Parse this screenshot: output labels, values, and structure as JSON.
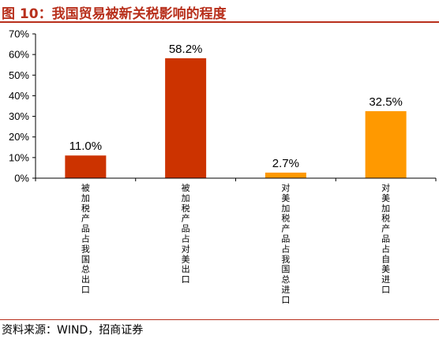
{
  "header": {
    "title": "图 10：我国贸易被新关税影响的程度"
  },
  "footer": {
    "source": "资料来源：WIND，招商证券"
  },
  "colors": {
    "title": "#b8301c",
    "rule": "#b8301c",
    "bar_red": "#cc3300",
    "bar_orange": "#ff9900"
  },
  "chart_data": {
    "type": "bar",
    "categories": [
      "被加税产品占我国总出口",
      "被加税产品占对美出口",
      "对美加税产品占我国总进口",
      "对美加税产品占自美进口"
    ],
    "values": [
      11.0,
      58.2,
      2.7,
      32.5
    ],
    "data_labels": [
      "11.0%",
      "58.2%",
      "2.7%",
      "32.5%"
    ],
    "bar_colors": [
      "#cc3300",
      "#cc3300",
      "#ff9900",
      "#ff9900"
    ],
    "y_ticks": [
      "0%",
      "10%",
      "20%",
      "30%",
      "40%",
      "50%",
      "60%",
      "70%"
    ],
    "ylim": [
      0,
      70
    ],
    "grid": false,
    "legend": "none",
    "xlabel": "",
    "ylabel": ""
  }
}
